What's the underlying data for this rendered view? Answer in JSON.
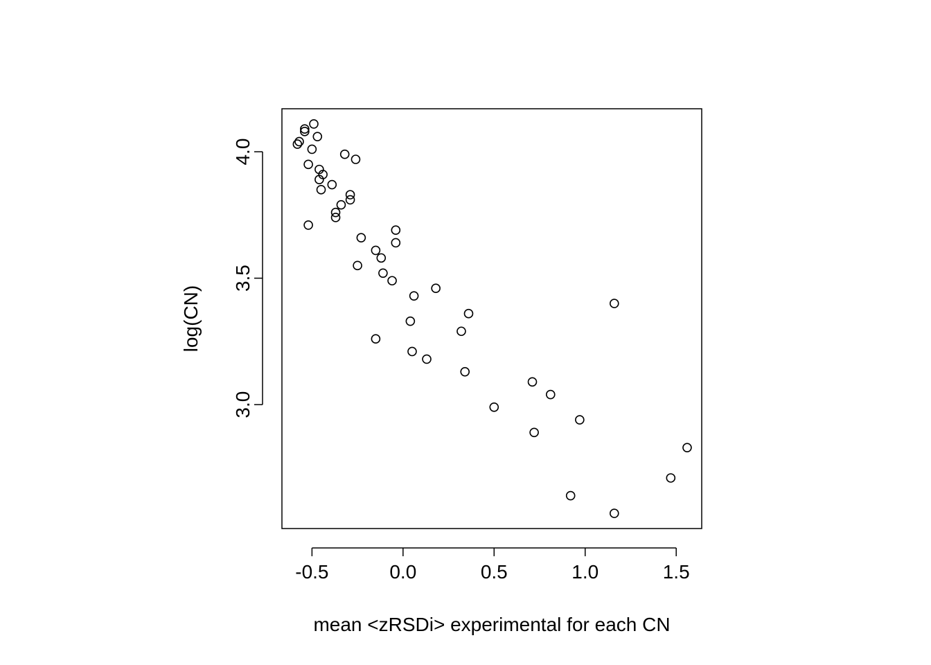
{
  "chart_data": {
    "type": "scatter",
    "xlabel": "mean <zRSDi> experimental for each CN",
    "ylabel": "log(CN)",
    "xlim": [
      -0.665,
      1.64
    ],
    "ylim": [
      2.51,
      4.17
    ],
    "x_ticks": [
      -0.5,
      0.0,
      0.5,
      1.0,
      1.5
    ],
    "y_ticks": [
      3.0,
      3.5,
      4.0
    ],
    "x_tick_labels": [
      "-0.5",
      "0.0",
      "0.5",
      "1.0",
      "1.5"
    ],
    "y_tick_labels": [
      "3.0",
      "3.5",
      "4.0"
    ],
    "grid": false,
    "legend": "none",
    "marker": "open-circle",
    "color": "#000000",
    "points": [
      {
        "x": -0.58,
        "y": 4.03
      },
      {
        "x": -0.57,
        "y": 4.04
      },
      {
        "x": -0.54,
        "y": 4.09
      },
      {
        "x": -0.54,
        "y": 4.08
      },
      {
        "x": -0.49,
        "y": 4.11
      },
      {
        "x": -0.47,
        "y": 4.06
      },
      {
        "x": -0.5,
        "y": 4.01
      },
      {
        "x": -0.52,
        "y": 3.95
      },
      {
        "x": -0.46,
        "y": 3.93
      },
      {
        "x": -0.44,
        "y": 3.91
      },
      {
        "x": -0.46,
        "y": 3.89
      },
      {
        "x": -0.45,
        "y": 3.85
      },
      {
        "x": -0.39,
        "y": 3.87
      },
      {
        "x": -0.32,
        "y": 3.99
      },
      {
        "x": -0.26,
        "y": 3.97
      },
      {
        "x": -0.29,
        "y": 3.83
      },
      {
        "x": -0.29,
        "y": 3.81
      },
      {
        "x": -0.34,
        "y": 3.79
      },
      {
        "x": -0.37,
        "y": 3.76
      },
      {
        "x": -0.37,
        "y": 3.74
      },
      {
        "x": -0.52,
        "y": 3.71
      },
      {
        "x": -0.23,
        "y": 3.66
      },
      {
        "x": -0.04,
        "y": 3.69
      },
      {
        "x": -0.04,
        "y": 3.64
      },
      {
        "x": -0.15,
        "y": 3.61
      },
      {
        "x": -0.12,
        "y": 3.58
      },
      {
        "x": -0.25,
        "y": 3.55
      },
      {
        "x": -0.11,
        "y": 3.52
      },
      {
        "x": -0.06,
        "y": 3.49
      },
      {
        "x": 0.18,
        "y": 3.46
      },
      {
        "x": 0.06,
        "y": 3.43
      },
      {
        "x": 0.36,
        "y": 3.36
      },
      {
        "x": 0.04,
        "y": 3.33
      },
      {
        "x": 0.32,
        "y": 3.29
      },
      {
        "x": -0.15,
        "y": 3.26
      },
      {
        "x": 0.05,
        "y": 3.21
      },
      {
        "x": 0.13,
        "y": 3.18
      },
      {
        "x": 0.34,
        "y": 3.13
      },
      {
        "x": 0.71,
        "y": 3.09
      },
      {
        "x": 0.81,
        "y": 3.04
      },
      {
        "x": 0.5,
        "y": 2.99
      },
      {
        "x": 0.97,
        "y": 2.94
      },
      {
        "x": 0.72,
        "y": 2.89
      },
      {
        "x": 1.16,
        "y": 3.4
      },
      {
        "x": 1.56,
        "y": 2.83
      },
      {
        "x": 1.47,
        "y": 2.71
      },
      {
        "x": 0.92,
        "y": 2.64
      },
      {
        "x": 1.16,
        "y": 2.57
      }
    ]
  }
}
